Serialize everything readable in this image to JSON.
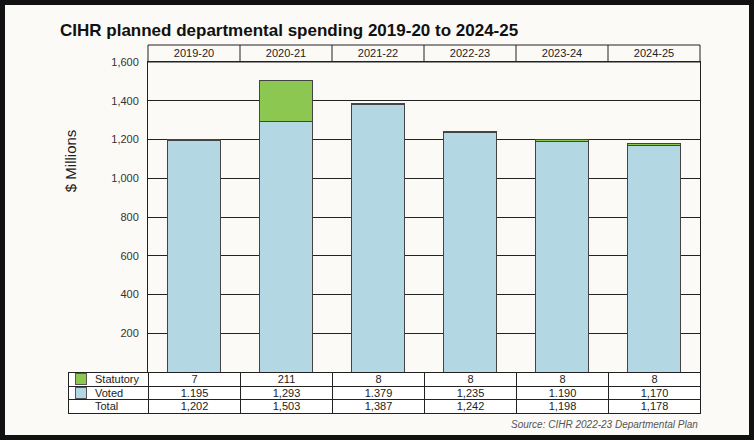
{
  "chart_data": {
    "type": "bar",
    "title": "CIHR planned departmental spending 2019-20 to 2024-25",
    "y_label": "$ Millions",
    "source": "Source: CIHR 2022-23 Departmental Plan",
    "categories": [
      "2019-20",
      "2020-21",
      "2021-22",
      "2022-23",
      "2023-24",
      "2024-25"
    ],
    "series": [
      {
        "name": "Voted",
        "color": "#b3d7e3",
        "values": [
          1195,
          1293,
          1379,
          1235,
          1190,
          1170
        ]
      },
      {
        "name": "Statutory",
        "color": "#8cc751",
        "values": [
          7,
          211,
          8,
          8,
          8,
          8
        ]
      }
    ],
    "stacked": true,
    "grid": true,
    "data_labels": false,
    "ylim": [
      0,
      1600
    ],
    "yticks": [
      200,
      400,
      600,
      800,
      {
        "value": 1000,
        "label": "1,000"
      },
      {
        "value": 1200,
        "label": "1,200"
      },
      {
        "value": 1400,
        "label": "1,400"
      },
      {
        "value": 1600,
        "label": "1,600"
      }
    ],
    "table": {
      "rows": [
        {
          "label": "Statutory",
          "cells": [
            "7",
            "211",
            "8",
            "8",
            "8",
            "8"
          ]
        },
        {
          "label": "Voted",
          "cells": [
            "1.195",
            "1,293",
            "1.379",
            "1,235",
            "1.190",
            "1,170"
          ]
        },
        {
          "label": "Total",
          "cells": [
            "1,202",
            "1,503",
            "1,387",
            "1,242",
            "1,198",
            "1,178"
          ]
        }
      ]
    }
  }
}
